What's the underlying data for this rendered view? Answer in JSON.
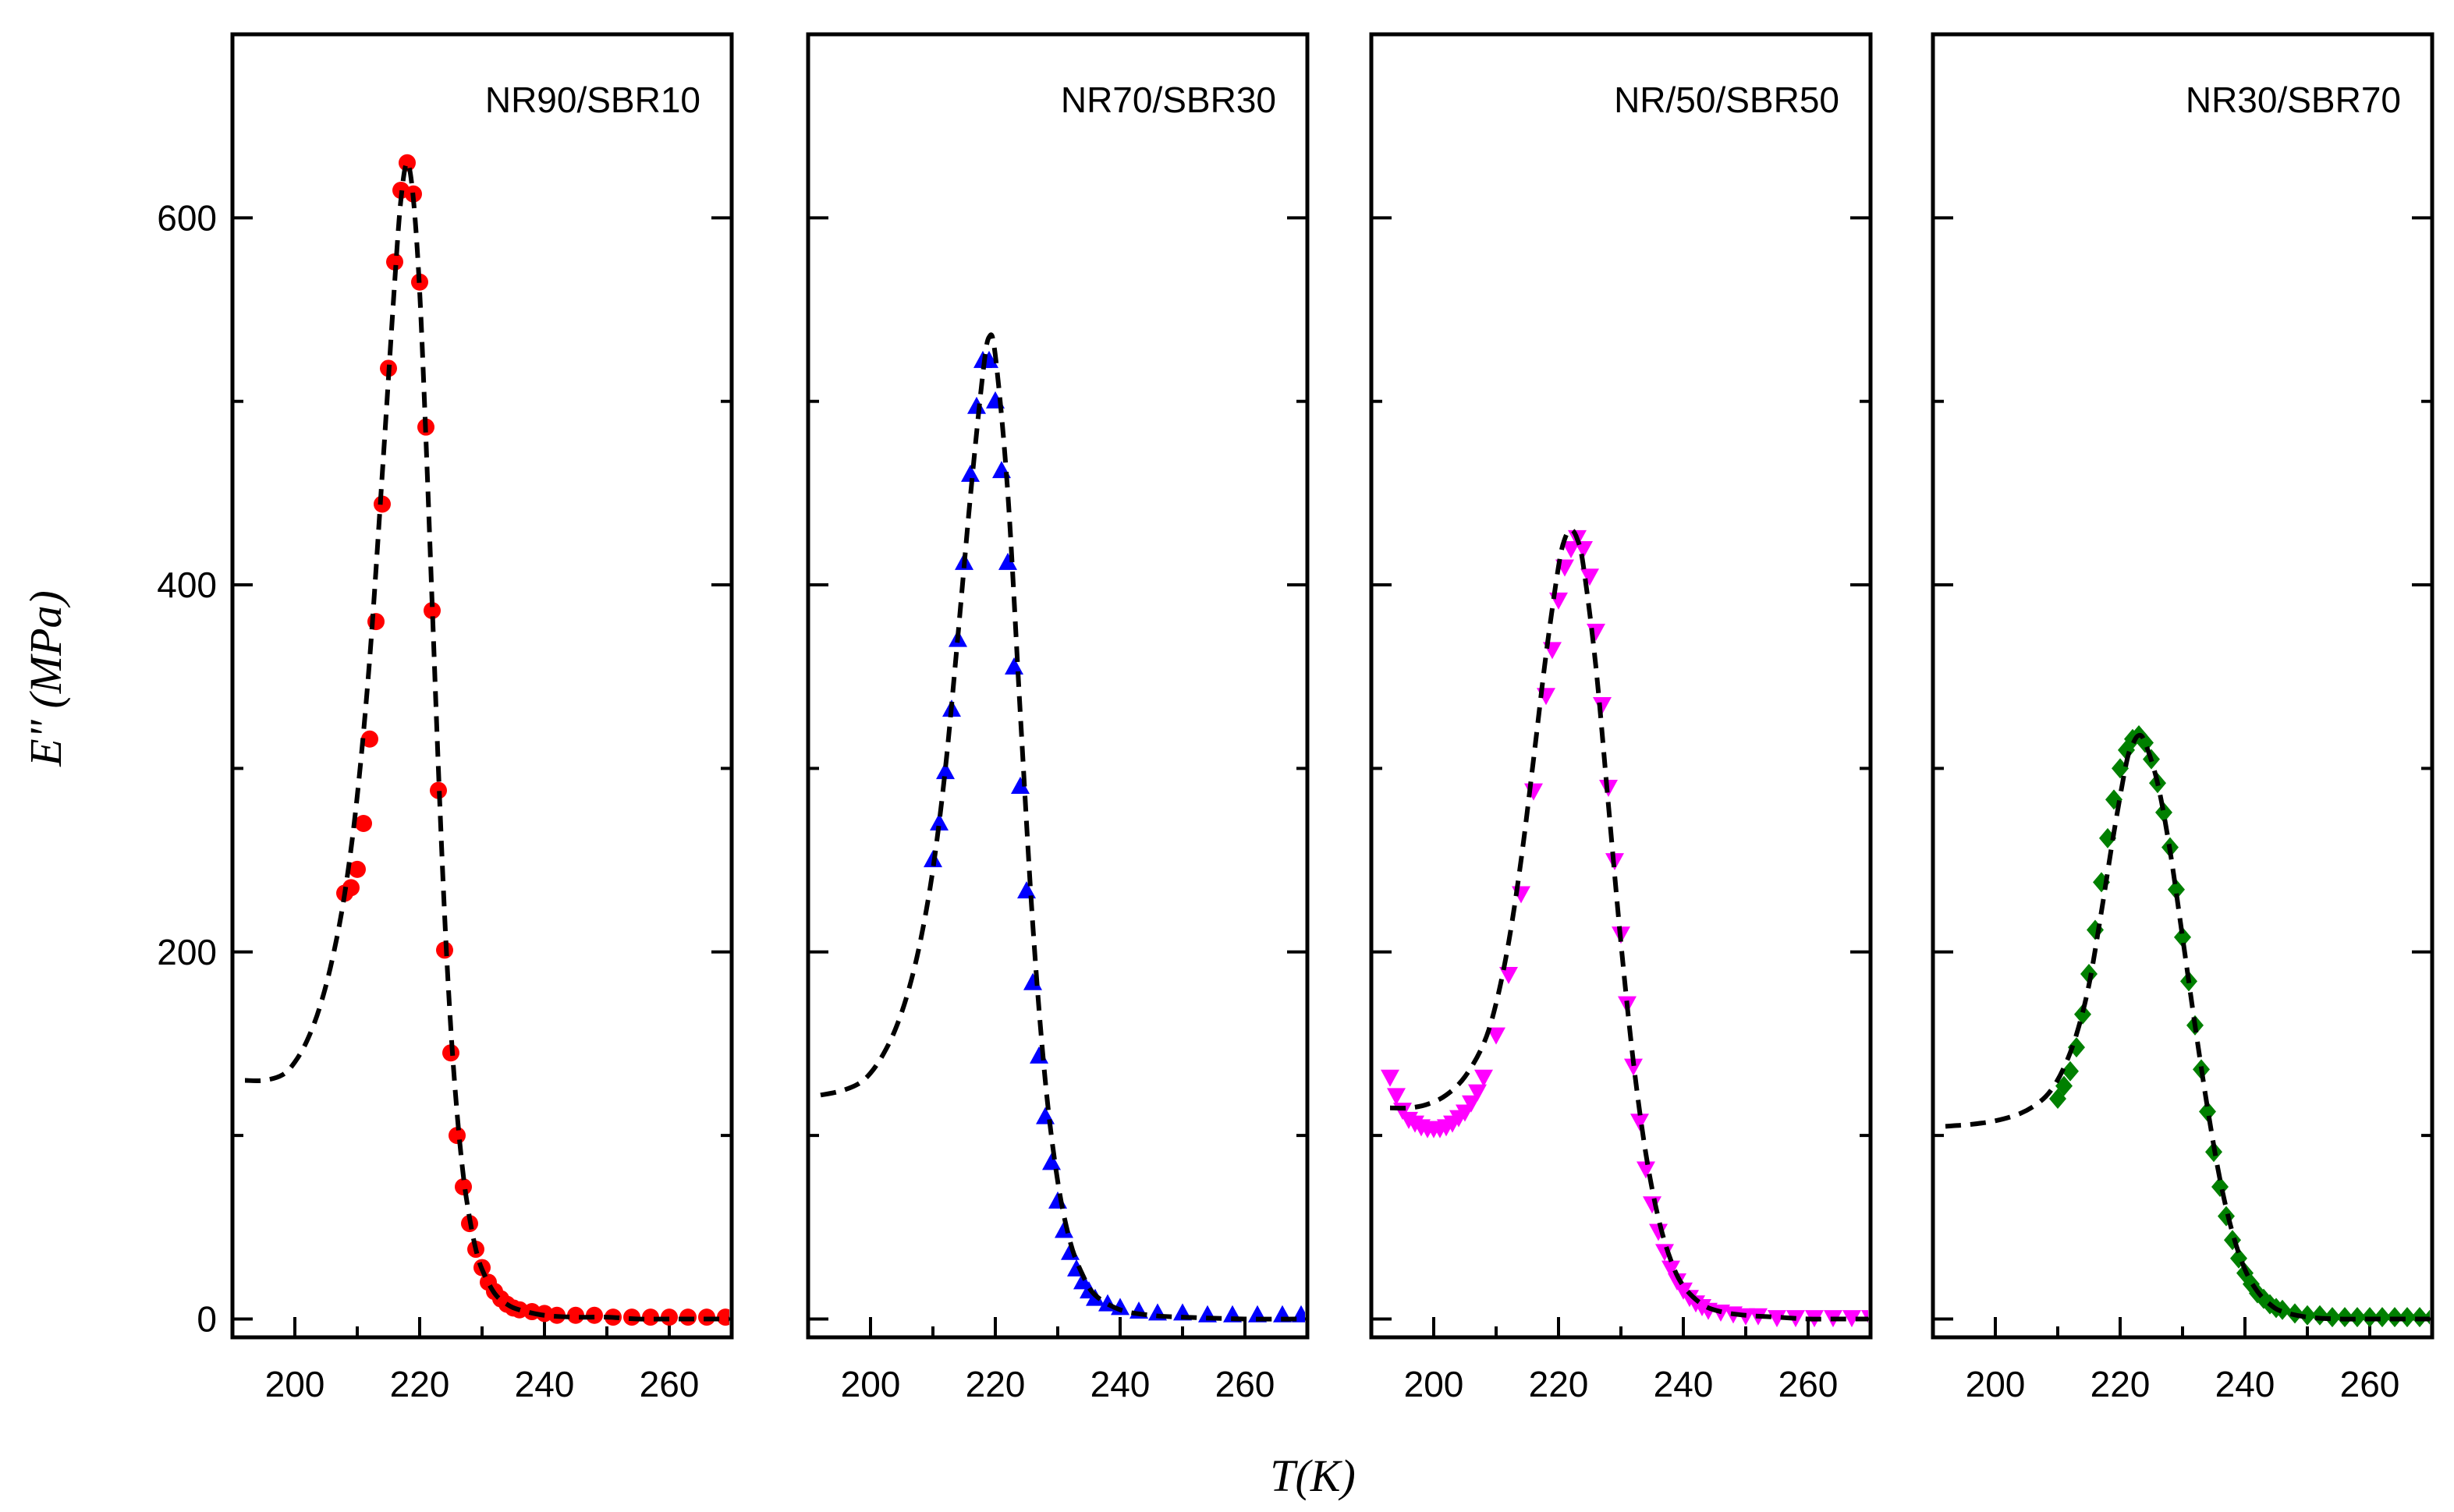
{
  "chart_data": {
    "type": "scatter",
    "ylabel": "E\" (MPa)",
    "xlabel": "T(K)",
    "xlim": [
      190,
      270
    ],
    "ylim": [
      -10,
      700
    ],
    "x_ticks": [
      200,
      220,
      240,
      260
    ],
    "x_minor_ticks": [
      210,
      230,
      250
    ],
    "y_ticks": [
      0,
      200,
      400,
      600
    ],
    "y_minor_ticks": [
      100,
      300,
      500
    ],
    "fit_style": "black dashed line",
    "panels": [
      {
        "name": "NR90/SBR10",
        "marker": "circle",
        "color": "#ff0000",
        "x": [
          208,
          209,
          210,
          211,
          212,
          213,
          214,
          215,
          216,
          217,
          218,
          219,
          220,
          221,
          222,
          223,
          224,
          225,
          226,
          227,
          228,
          229,
          230,
          231,
          232,
          233,
          234,
          235,
          236,
          238,
          240,
          242,
          245,
          248,
          251,
          254,
          257,
          260,
          263,
          266,
          269
        ],
        "y": [
          232,
          235,
          245,
          270,
          316,
          380,
          444,
          518,
          576,
          615,
          630,
          613,
          565,
          486,
          386,
          288,
          201,
          145,
          100,
          72,
          52,
          38,
          28,
          20,
          15,
          11,
          8,
          6,
          5,
          4,
          3,
          2,
          2,
          2,
          1,
          1,
          1,
          1,
          1,
          1,
          1
        ],
        "fit_x": [
          192,
          195,
          198,
          200,
          202,
          204,
          206,
          208,
          210,
          212,
          214,
          216,
          217,
          218,
          219,
          220,
          221,
          222,
          223,
          224,
          225,
          226,
          227,
          228,
          229,
          230,
          232,
          234,
          236,
          240,
          245,
          250,
          255,
          260,
          270
        ],
        "fit_y": [
          130,
          130,
          133,
          140,
          152,
          170,
          196,
          232,
          285,
          360,
          460,
          565,
          610,
          630,
          610,
          560,
          480,
          390,
          300,
          220,
          158,
          112,
          78,
          55,
          38,
          27,
          14,
          8,
          5,
          2,
          1,
          1,
          0,
          0,
          0
        ]
      },
      {
        "name": "NR70/SBR30",
        "marker": "triangle-up",
        "color": "#0000ff",
        "x": [
          210,
          211,
          212,
          213,
          214,
          215,
          216,
          217,
          218,
          219,
          220,
          221,
          222,
          223,
          224,
          225,
          226,
          227,
          228,
          229,
          230,
          231,
          232,
          233,
          234,
          235,
          236,
          238,
          240,
          243,
          246,
          250,
          254,
          258,
          262,
          266,
          269
        ],
        "y": [
          250,
          270,
          298,
          332,
          370,
          412,
          460,
          497,
          522,
          522,
          500,
          462,
          412,
          355,
          290,
          233,
          183,
          143,
          110,
          85,
          64,
          48,
          36,
          27,
          20,
          15,
          11,
          8,
          6,
          4,
          3,
          3,
          2,
          2,
          2,
          2,
          2
        ],
        "fit_x": [
          192,
          195,
          198,
          200,
          202,
          204,
          206,
          208,
          210,
          212,
          214,
          216,
          218,
          219,
          220,
          222,
          224,
          226,
          228,
          230,
          232,
          234,
          236,
          240,
          245,
          250,
          260,
          270
        ],
        "fit_y": [
          122,
          124,
          128,
          134,
          144,
          158,
          178,
          206,
          245,
          300,
          372,
          448,
          515,
          535,
          525,
          450,
          330,
          215,
          130,
          75,
          42,
          24,
          13,
          5,
          2,
          1,
          0,
          0
        ]
      },
      {
        "name": "NR/50/SBR50",
        "marker": "triangle-down",
        "color": "#ff00ff",
        "x": [
          193,
          194,
          195,
          196,
          197,
          198,
          199,
          200,
          201,
          202,
          203,
          204,
          205,
          206,
          207,
          208,
          210,
          212,
          214,
          216,
          218,
          219,
          220,
          221,
          222,
          223,
          224,
          225,
          226,
          227,
          228,
          229,
          230,
          231,
          232,
          233,
          234,
          235,
          236,
          237,
          238,
          239,
          240,
          241,
          242,
          243,
          244,
          246,
          248,
          250,
          252,
          255,
          258,
          261,
          264,
          267,
          270
        ],
        "y": [
          132,
          122,
          114,
          109,
          107,
          105,
          104,
          104,
          104,
          105,
          107,
          110,
          113,
          118,
          124,
          132,
          155,
          188,
          232,
          288,
          340,
          365,
          392,
          410,
          420,
          426,
          420,
          405,
          375,
          335,
          290,
          250,
          210,
          172,
          138,
          108,
          82,
          63,
          48,
          37,
          28,
          21,
          16,
          12,
          9,
          7,
          5,
          4,
          3,
          2,
          2,
          1,
          1,
          1,
          1,
          1,
          1
        ],
        "fit_x": [
          193,
          196,
          199,
          202,
          205,
          208,
          210,
          212,
          214,
          216,
          218,
          220,
          221,
          222,
          223,
          224,
          226,
          228,
          230,
          232,
          234,
          236,
          238,
          240,
          243,
          246,
          250,
          255,
          260,
          265,
          270
        ],
        "fit_y": [
          115,
          115,
          117,
          122,
          132,
          150,
          172,
          205,
          250,
          305,
          362,
          410,
          425,
          430,
          425,
          410,
          355,
          280,
          205,
          140,
          90,
          55,
          32,
          18,
          8,
          4,
          2,
          1,
          0,
          0,
          0
        ]
      },
      {
        "name": "NR30/SBR70",
        "marker": "diamond",
        "color": "#008000",
        "x": [
          210,
          211,
          212,
          213,
          214,
          215,
          216,
          217,
          218,
          219,
          220,
          221,
          222,
          223,
          224,
          225,
          226,
          227,
          228,
          229,
          230,
          231,
          232,
          233,
          234,
          235,
          236,
          237,
          238,
          239,
          240,
          241,
          242,
          243,
          244,
          245,
          246,
          248,
          250,
          252,
          254,
          256,
          258,
          260,
          262,
          264,
          266,
          268,
          270
        ],
        "y": [
          120,
          127,
          135,
          148,
          166,
          188,
          212,
          238,
          262,
          283,
          300,
          310,
          316,
          318,
          314,
          305,
          292,
          276,
          257,
          234,
          208,
          184,
          160,
          136,
          113,
          91,
          72,
          56,
          43,
          33,
          25,
          19,
          14,
          11,
          8,
          6,
          5,
          3,
          2,
          2,
          1,
          1,
          1,
          1,
          1,
          1,
          1,
          1,
          1
        ],
        "fit_x": [
          192,
          196,
          200,
          204,
          207,
          209,
          211,
          213,
          215,
          217,
          219,
          221,
          222,
          223,
          224,
          226,
          228,
          230,
          232,
          234,
          236,
          238,
          240,
          242,
          244,
          246,
          250,
          255,
          260,
          270
        ],
        "fit_y": [
          105,
          106,
          108,
          112,
          118,
          125,
          137,
          155,
          182,
          222,
          265,
          303,
          313,
          318,
          314,
          292,
          255,
          208,
          160,
          115,
          76,
          47,
          27,
          15,
          8,
          4,
          1,
          0,
          0,
          0
        ]
      }
    ]
  }
}
